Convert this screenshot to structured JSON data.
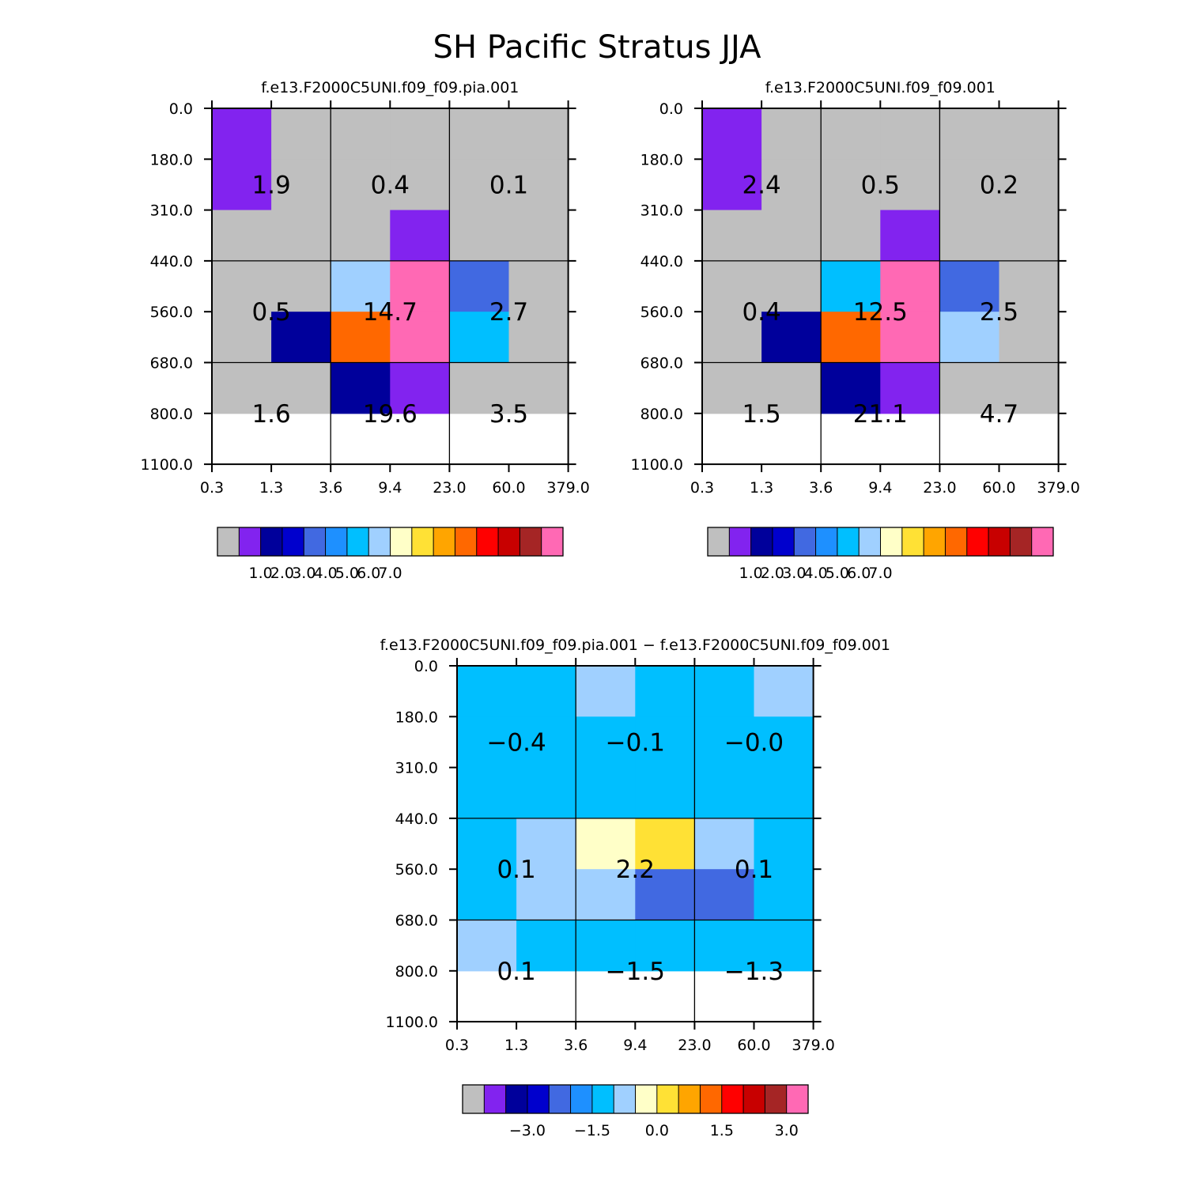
{
  "chart_data": {
    "title": "SH Pacific Stratus JJA",
    "panels": [
      {
        "type": "heatmap",
        "title": "f.e13.F2000C5UNI.f09_f09.pia.001",
        "x_ticks": [
          "0.3",
          "1.3",
          "3.6",
          "9.4",
          "23.0",
          "60.0",
          "379.0"
        ],
        "y_ticks": [
          "0.0",
          "180.0",
          "310.0",
          "440.0",
          "560.0",
          "680.0",
          "800.0",
          "1100.0"
        ],
        "cell_colors": [
          [
            1,
            0,
            0,
            0,
            0,
            0
          ],
          [
            1,
            0,
            0,
            0,
            0,
            0
          ],
          [
            0,
            0,
            0,
            1,
            0,
            0
          ],
          [
            0,
            0,
            7,
            15,
            4,
            0
          ],
          [
            0,
            2,
            11,
            15,
            6,
            0
          ],
          [
            0,
            0,
            2,
            1,
            0,
            0
          ]
        ],
        "group_values": [
          [
            "1.9",
            "0.4",
            "0.1"
          ],
          [
            "0.5",
            "14.7",
            "2.7"
          ],
          [
            "1.6",
            "19.6",
            "3.5"
          ]
        ],
        "colorbar_labels": [
          "1.0",
          "2.0",
          "3.0",
          "4.0",
          "5.0",
          "6.0",
          "7.0"
        ]
      },
      {
        "type": "heatmap",
        "title": "f.e13.F2000C5UNI.f09_f09.001",
        "x_ticks": [
          "0.3",
          "1.3",
          "3.6",
          "9.4",
          "23.0",
          "60.0",
          "379.0"
        ],
        "y_ticks": [
          "0.0",
          "180.0",
          "310.0",
          "440.0",
          "560.0",
          "680.0",
          "800.0",
          "1100.0"
        ],
        "cell_colors": [
          [
            1,
            0,
            0,
            0,
            0,
            0
          ],
          [
            1,
            0,
            0,
            0,
            0,
            0
          ],
          [
            0,
            0,
            0,
            1,
            0,
            0
          ],
          [
            0,
            0,
            6,
            15,
            4,
            0
          ],
          [
            0,
            2,
            11,
            15,
            7,
            0
          ],
          [
            0,
            0,
            2,
            1,
            0,
            0
          ]
        ],
        "group_values": [
          [
            "2.4",
            "0.5",
            "0.2"
          ],
          [
            "0.4",
            "12.5",
            "2.5"
          ],
          [
            "1.5",
            "21.1",
            "4.7"
          ]
        ],
        "colorbar_labels": [
          "1.0",
          "2.0",
          "3.0",
          "4.0",
          "5.0",
          "6.0",
          "7.0"
        ]
      },
      {
        "type": "heatmap",
        "title": "f.e13.F2000C5UNI.f09_f09.pia.001 − f.e13.F2000C5UNI.f09_f09.001",
        "x_ticks": [
          "0.3",
          "1.3",
          "3.6",
          "9.4",
          "23.0",
          "60.0",
          "379.0"
        ],
        "y_ticks": [
          "0.0",
          "180.0",
          "310.0",
          "440.0",
          "560.0",
          "680.0",
          "800.0",
          "1100.0"
        ],
        "cell_colors": [
          [
            6,
            6,
            7,
            6,
            6,
            7
          ],
          [
            6,
            6,
            6,
            6,
            6,
            6
          ],
          [
            6,
            6,
            6,
            6,
            6,
            6
          ],
          [
            6,
            7,
            8,
            9,
            7,
            6
          ],
          [
            6,
            7,
            7,
            4,
            4,
            6
          ],
          [
            7,
            6,
            6,
            6,
            6,
            6
          ]
        ],
        "group_values": [
          [
            "−0.4",
            "−0.1",
            "−0.0"
          ],
          [
            "0.1",
            "2.2",
            "0.1"
          ],
          [
            "0.1",
            "−1.5",
            "−1.3"
          ]
        ],
        "colorbar_labels": [
          "−3.0",
          "−1.5",
          "0.0",
          "1.5",
          "3.0"
        ]
      }
    ],
    "palette": [
      "#bfbfbf",
      "#8223ef",
      "#00009b",
      "#0000cd",
      "#4169e1",
      "#1e90ff",
      "#00bfff",
      "#a0d0ff",
      "#ffffc8",
      "#ffe135",
      "#ffa500",
      "#ff6800",
      "#ff0000",
      "#c80000",
      "#a52525",
      "#ff69b4"
    ],
    "diff_palette": [
      "#8223ef",
      "#00009b",
      "#0000cd",
      "#4169e1",
      "#1e90ff",
      "#00bfff",
      "#a0d0ff",
      "#ffffc8",
      "#ffe135",
      "#ffa500",
      "#ff6800",
      "#ff0000",
      "#c80000",
      "#a52525",
      "#ff69b4"
    ]
  }
}
